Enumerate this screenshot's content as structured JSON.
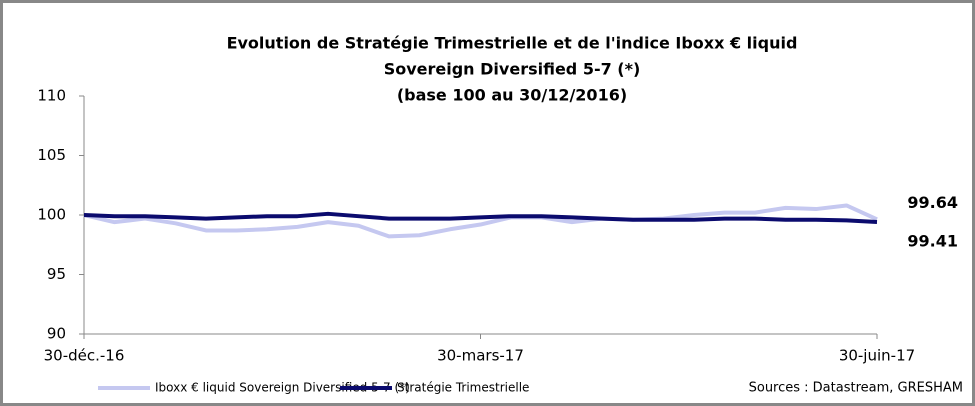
{
  "chart_data": {
    "type": "line",
    "title": [
      "Evolution de Stratégie Trimestrielle et de l'indice Iboxx € liquid",
      "Sovereign Diversified 5-7 (*)",
      "(base 100 au 30/12/2016)"
    ],
    "categories": [
      "30-déc.-16",
      null,
      null,
      null,
      null,
      null,
      null,
      null,
      null,
      null,
      null,
      null,
      null,
      "30-mars-17",
      null,
      null,
      null,
      null,
      null,
      null,
      null,
      null,
      null,
      null,
      null,
      null,
      "30-juin-17"
    ],
    "series": [
      {
        "name": "Iboxx € liquid Sovereign Diversified 5-7 (*)",
        "color": "#c5c8f0",
        "values": [
          100,
          99.4,
          99.7,
          99.3,
          98.7,
          98.7,
          98.8,
          99.0,
          99.4,
          99.1,
          98.2,
          98.3,
          98.8,
          99.2,
          99.8,
          99.8,
          99.4,
          99.7,
          99.6,
          99.7,
          100.0,
          100.2,
          100.2,
          100.6,
          100.5,
          100.8,
          99.64
        ]
      },
      {
        "name": "Stratégie Trimestrielle",
        "color": "#0b0b6e",
        "values": [
          100,
          99.9,
          99.9,
          99.8,
          99.7,
          99.8,
          99.9,
          99.9,
          100.1,
          99.9,
          99.7,
          99.7,
          99.7,
          99.8,
          99.9,
          99.9,
          99.8,
          99.7,
          99.6,
          99.6,
          99.6,
          99.7,
          99.7,
          99.6,
          99.6,
          99.55,
          99.41
        ]
      }
    ],
    "ylim": [
      90,
      110
    ],
    "yticks": [
      90,
      95,
      100,
      105,
      110
    ],
    "grid": false,
    "legend": "bottom",
    "source": "Sources : Datastream, GRESHAM"
  }
}
